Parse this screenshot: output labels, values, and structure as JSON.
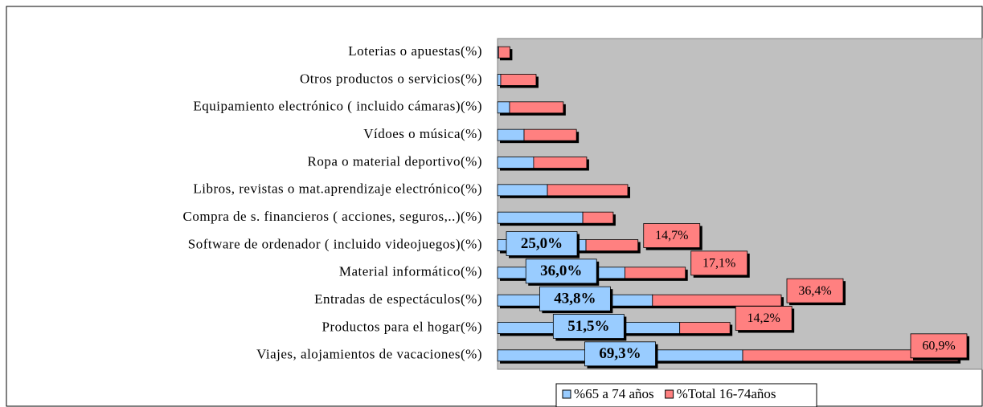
{
  "chart_data": {
    "type": "stacked-barh",
    "categories": [
      "Loterias o apuestas(%)",
      "Otros productos o servicios(%)",
      "Equipamiento electrónico ( incluido cámaras)(%)",
      "Vídoes o música(%)",
      "Ropa o material deportivo(%)",
      "Libros, revistas o mat.aprendizaje electrónico(%)",
      "Compra de s. financieros ( acciones, seguros,..)(%)",
      "Software de ordenador ( incluido videojuegos)(%)",
      "Material informático(%)",
      "Entradas de espectáculos(%)",
      "Productos para el hogar(%)",
      "Viajes, alojamientos de vacaciones(%)"
    ],
    "series": [
      {
        "name": "%65 a 74 años",
        "color": "#99ccff",
        "values": [
          0.3,
          0.9,
          3.4,
          7.5,
          10.2,
          14.1,
          24.1,
          25.0,
          36.0,
          43.8,
          51.5,
          69.3
        ],
        "value_labels": [
          null,
          null,
          null,
          null,
          null,
          null,
          null,
          "25,0%",
          "36,0%",
          "43,8%",
          "51,5%",
          "69,3%"
        ]
      },
      {
        "name": "%Total 16-74años",
        "color": "#ff8080",
        "values": [
          3.2,
          10.0,
          15.2,
          14.8,
          15.0,
          22.7,
          8.6,
          14.7,
          17.1,
          36.4,
          14.2,
          60.9
        ],
        "value_labels": [
          null,
          null,
          null,
          null,
          null,
          null,
          null,
          "14,7%",
          "17,1%",
          "36,4%",
          "14,2%",
          "60,9%"
        ]
      }
    ],
    "xlim": [
      0,
      137
    ],
    "plot_color": "#c0c0c0"
  }
}
